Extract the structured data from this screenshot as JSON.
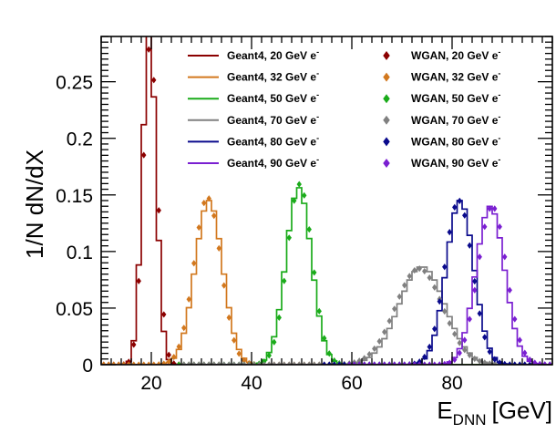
{
  "chart_data": {
    "type": "line",
    "ylabel": "1/N dN/dX",
    "xlabel_main": "E",
    "xlabel_sub": "DNN",
    "xlabel_unit": "[GeV]",
    "xlim": [
      10,
      100
    ],
    "ylim": [
      0,
      0.29
    ],
    "xticks": [
      20,
      40,
      60,
      80
    ],
    "xtick_labels": [
      "20",
      "40",
      "60",
      "80"
    ],
    "yticks": [
      0,
      0.05,
      0.1,
      0.15,
      0.2,
      0.25
    ],
    "ytick_labels": [
      "0",
      "0.05",
      "0.1",
      "0.15",
      "0.2",
      "0.25"
    ],
    "grid": false,
    "legend_position": "top-right",
    "series": [
      {
        "name": "Geant4, 20 GeV e",
        "kind": "hist",
        "color": "#8b0000",
        "mean": 19.6,
        "sigma": 1.35
      },
      {
        "name": "Geant4, 32 GeV e",
        "kind": "hist",
        "color": "#d2781e",
        "mean": 31.5,
        "sigma": 2.75
      },
      {
        "name": "Geant4, 50 GeV e",
        "kind": "hist",
        "color": "#1aab1a",
        "mean": 49.4,
        "sigma": 2.55
      },
      {
        "name": "Geant4, 70 GeV e",
        "kind": "hist",
        "color": "#808080",
        "mean": 74.0,
        "sigma": 4.6
      },
      {
        "name": "Geant4, 80 GeV e",
        "kind": "hist",
        "color": "#0a0a8c",
        "mean": 81.6,
        "sigma": 2.75
      },
      {
        "name": "Geant4, 90 GeV e",
        "kind": "hist",
        "color": "#7a1fd1",
        "mean": 87.6,
        "sigma": 2.85
      },
      {
        "name": "WGAN, 20 GeV e",
        "kind": "points",
        "color": "#8b0000",
        "mean": 19.8,
        "sigma": 1.4
      },
      {
        "name": "WGAN, 32 GeV e",
        "kind": "points",
        "color": "#d2781e",
        "mean": 31.2,
        "sigma": 2.7
      },
      {
        "name": "WGAN, 50 GeV e",
        "kind": "points",
        "color": "#1aab1a",
        "mean": 49.6,
        "sigma": 2.5
      },
      {
        "name": "WGAN, 70 GeV e",
        "kind": "points",
        "color": "#808080",
        "mean": 73.4,
        "sigma": 4.7
      },
      {
        "name": "WGAN, 80 GeV e",
        "kind": "points",
        "color": "#0a0a8c",
        "mean": 81.3,
        "sigma": 2.75
      },
      {
        "name": "WGAN, 90 GeV e",
        "kind": "points",
        "color": "#7a1fd1",
        "mean": 88.0,
        "sigma": 2.85
      }
    ],
    "bin_width": 1,
    "legend_superscript": "-"
  }
}
